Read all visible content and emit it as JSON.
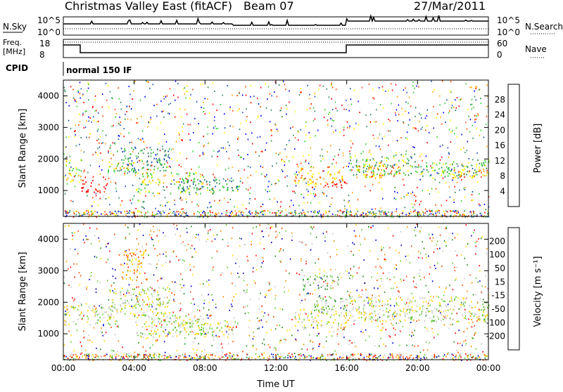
{
  "header": {
    "title": "Christmas Valley East (fitACF)",
    "beam": "Beam 07",
    "date": "27/Mar/2011"
  },
  "aux_panels": {
    "nsky_label": "N.Sky",
    "nsky_ticks": [
      "10^5",
      "10^0"
    ],
    "nsky_right_ticks": [
      "10^5",
      "10^0"
    ],
    "nsearch_label": "N.Search",
    "freq_label": "Freq.",
    "freq_unit": "[MHz]",
    "freq_ticks": [
      "18",
      "8"
    ],
    "nave_ticks": [
      "60",
      "0"
    ],
    "nave_label": "Nave",
    "cpid_label": "CPID",
    "cpid_value": "normal 150 IF"
  },
  "colors": {
    "power": [
      "#0000ff",
      "#1e50b4",
      "#2e8b57",
      "#32cd32",
      "#ffff00",
      "#ffa500",
      "#ff4500",
      "#ff0000"
    ],
    "velocity": [
      "#0000cd",
      "#228b22",
      "#66cc33",
      "#c8c8c8",
      "#ffd700",
      "#ff8c00",
      "#ff4500",
      "#ff0000"
    ]
  },
  "chart_data": [
    {
      "type": "heatmap",
      "panel": "power",
      "ylabel": "Slant Range [km]",
      "yticks": [
        "4000",
        "3000",
        "2000",
        "1000"
      ],
      "ylim": [
        180,
        4500
      ],
      "xlim": [
        0,
        24
      ],
      "colorbar_label": "Power [dB]",
      "colorbar_ticks": [
        "28",
        "24",
        "20",
        "16",
        "12",
        "8",
        "4"
      ],
      "bands": [
        {
          "x": [
            0.0,
            1.0
          ],
          "y": [
            1300,
            2000
          ],
          "level": 4
        },
        {
          "x": [
            1.0,
            2.5
          ],
          "y": [
            950,
            1450
          ],
          "level": 7
        },
        {
          "x": [
            2.5,
            4.0
          ],
          "y": [
            1500,
            1900
          ],
          "level": 4
        },
        {
          "x": [
            3.0,
            6.0
          ],
          "y": [
            1600,
            2400
          ],
          "level": 2
        },
        {
          "x": [
            4.0,
            8.0
          ],
          "y": [
            1200,
            1600
          ],
          "level": 4
        },
        {
          "x": [
            4.0,
            8.5
          ],
          "y": [
            900,
            1100
          ],
          "level": 3
        },
        {
          "x": [
            6.0,
            10.0
          ],
          "y": [
            1000,
            1400
          ],
          "level": 2
        },
        {
          "x": [
            13.0,
            16.0
          ],
          "y": [
            1200,
            1800
          ],
          "level": 5
        },
        {
          "x": [
            14.0,
            16.0
          ],
          "y": [
            1100,
            1300
          ],
          "level": 7
        },
        {
          "x": [
            16.0,
            20.0
          ],
          "y": [
            1500,
            2200
          ],
          "level": 3
        },
        {
          "x": [
            16.5,
            19.0
          ],
          "y": [
            1400,
            1800
          ],
          "level": 5
        },
        {
          "x": [
            20.0,
            24.0
          ],
          "y": [
            1400,
            2000
          ],
          "level": 3
        },
        {
          "x": [
            22.0,
            24.0
          ],
          "y": [
            1450,
            1700
          ],
          "level": 5
        }
      ]
    },
    {
      "type": "heatmap",
      "panel": "velocity",
      "ylabel": "Slant Range [km]",
      "yticks": [
        "4000",
        "3000",
        "2000",
        "1000"
      ],
      "ylim": [
        180,
        4500
      ],
      "xlim": [
        0,
        24
      ],
      "xlabel": "Time UT",
      "xticks": [
        "00:00",
        "04:00",
        "08:00",
        "12:00",
        "16:00",
        "20:00",
        "00:00"
      ],
      "colorbar_label": "Velocity [m s⁻¹]",
      "colorbar_ticks": [
        "200",
        "100",
        "50",
        "15",
        "-15",
        "-50",
        "-100",
        "-200"
      ],
      "bands": [
        {
          "x": [
            0.0,
            3.0
          ],
          "y": [
            1300,
            2000
          ],
          "level": 3
        },
        {
          "x": [
            2.5,
            6.0
          ],
          "y": [
            1600,
            2500
          ],
          "level": 3
        },
        {
          "x": [
            3.3,
            4.7
          ],
          "y": [
            2700,
            3700
          ],
          "level": 5
        },
        {
          "x": [
            4.0,
            8.0
          ],
          "y": [
            1200,
            1600
          ],
          "level": 3
        },
        {
          "x": [
            4.0,
            8.5
          ],
          "y": [
            900,
            1100
          ],
          "level": 3
        },
        {
          "x": [
            6.0,
            10.0
          ],
          "y": [
            1000,
            1400
          ],
          "level": 3
        },
        {
          "x": [
            13.0,
            16.0
          ],
          "y": [
            1200,
            1800
          ],
          "level": 3
        },
        {
          "x": [
            16.0,
            24.0
          ],
          "y": [
            1400,
            2200
          ],
          "level": 3
        },
        {
          "x": [
            14.0,
            16.0
          ],
          "y": [
            1700,
            2200
          ],
          "level": 2
        },
        {
          "x": [
            13.5,
            15.5
          ],
          "y": [
            2400,
            2900
          ],
          "level": 2
        }
      ]
    }
  ]
}
